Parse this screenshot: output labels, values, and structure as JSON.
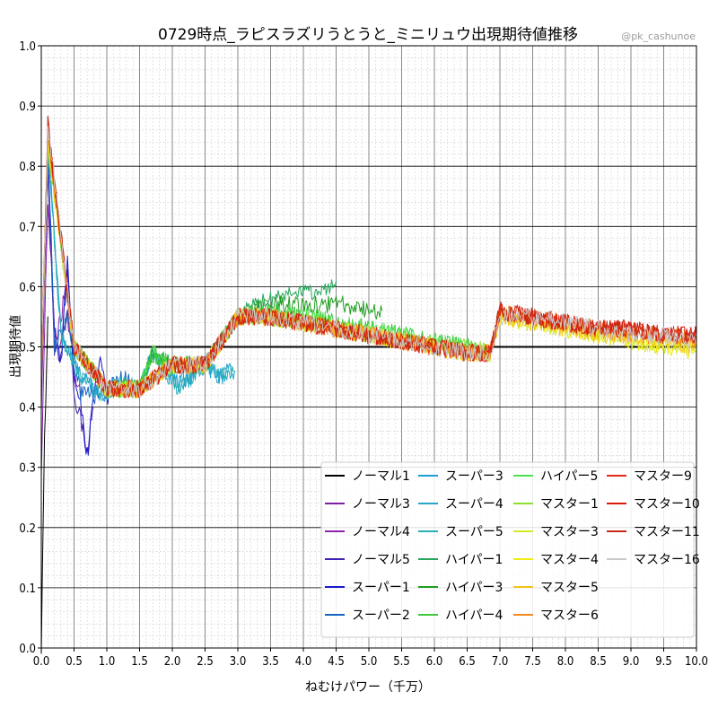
{
  "chart_data": {
    "type": "line",
    "title": "0729時点_ラピスラズリうとうと_ミニリュウ出現期待値推移",
    "credit": "@pk_cashunoe",
    "xlabel": "ねむけパワー（千万）",
    "ylabel": "出現期待値",
    "xlim": [
      0.0,
      10.0
    ],
    "ylim": [
      0.0,
      1.0
    ],
    "x_ticks": [
      "0.0",
      "0.5",
      "1.0",
      "1.5",
      "2.0",
      "2.5",
      "3.0",
      "3.5",
      "4.0",
      "4.5",
      "5.0",
      "5.5",
      "6.0",
      "6.5",
      "7.0",
      "7.5",
      "8.0",
      "8.5",
      "9.0",
      "9.5",
      "10.0"
    ],
    "y_ticks": [
      "0.0",
      "0.1",
      "0.2",
      "0.3",
      "0.4",
      "0.5",
      "0.6",
      "0.7",
      "0.8",
      "0.9",
      "1.0"
    ],
    "grid": true,
    "reference_line": 0.5,
    "legend_position": "bottom-right",
    "series": [
      {
        "name": "ノーマル1",
        "color": "#000000",
        "x": [
          0.0,
          0.05,
          0.1
        ],
        "y": [
          0.0,
          0.35,
          0.55
        ]
      },
      {
        "name": "ノーマル3",
        "color": "#7b1fa2",
        "x": [
          0.0,
          0.1,
          0.2,
          0.3,
          0.4,
          0.5
        ],
        "y": [
          0.3,
          0.75,
          0.52,
          0.5,
          0.55,
          0.48
        ]
      },
      {
        "name": "ノーマル4",
        "color": "#8e24aa",
        "x": [
          0.0,
          0.1,
          0.2,
          0.3,
          0.4,
          0.5,
          0.6
        ],
        "y": [
          0.4,
          0.8,
          0.5,
          0.55,
          0.62,
          0.45,
          0.42
        ]
      },
      {
        "name": "ノーマル5",
        "color": "#3f1fb4",
        "x": [
          0.0,
          0.1,
          0.2,
          0.3,
          0.4,
          0.5,
          0.6,
          0.7,
          0.8
        ],
        "y": [
          0.45,
          0.82,
          0.5,
          0.48,
          0.63,
          0.42,
          0.38,
          0.33,
          0.4
        ]
      },
      {
        "name": "スーパー1",
        "color": "#1a1acd",
        "x": [
          0.0,
          0.1,
          0.2,
          0.3,
          0.4,
          0.5,
          0.6,
          0.7,
          0.8,
          0.9,
          1.0,
          1.1
        ],
        "y": [
          0.45,
          0.83,
          0.52,
          0.47,
          0.64,
          0.45,
          0.4,
          0.32,
          0.41,
          0.48,
          0.41,
          0.45
        ]
      },
      {
        "name": "スーパー2",
        "color": "#1565c0",
        "x": [
          0.0,
          0.1,
          0.2,
          0.4,
          0.6,
          0.8,
          1.0,
          1.2,
          1.4
        ],
        "y": [
          0.45,
          0.84,
          0.5,
          0.55,
          0.42,
          0.42,
          0.43,
          0.45,
          0.44
        ]
      },
      {
        "name": "スーパー3",
        "color": "#1e9ed6",
        "x": [
          0.0,
          0.1,
          0.3,
          0.6,
          0.9,
          1.2,
          1.5,
          1.7,
          1.9,
          2.1,
          2.3,
          2.5,
          2.7,
          2.9
        ],
        "y": [
          0.45,
          0.84,
          0.52,
          0.45,
          0.42,
          0.44,
          0.43,
          0.49,
          0.46,
          0.44,
          0.45,
          0.47,
          0.45,
          0.46
        ]
      },
      {
        "name": "スーパー4",
        "color": "#26a6c8",
        "x": [
          0.0,
          0.1,
          0.3,
          0.6,
          0.9,
          1.2,
          1.5,
          1.7,
          1.9,
          2.1,
          2.3,
          2.5,
          2.7,
          2.95
        ],
        "y": [
          0.45,
          0.84,
          0.52,
          0.45,
          0.42,
          0.44,
          0.43,
          0.49,
          0.46,
          0.43,
          0.45,
          0.47,
          0.45,
          0.46
        ]
      },
      {
        "name": "スーパー5",
        "color": "#2ab0b8",
        "x": [
          0.0,
          0.1,
          0.3,
          0.6,
          0.9,
          1.2,
          1.5,
          1.7,
          1.9,
          2.1,
          2.3,
          2.5,
          2.7,
          2.95
        ],
        "y": [
          0.45,
          0.84,
          0.52,
          0.45,
          0.42,
          0.44,
          0.43,
          0.49,
          0.46,
          0.43,
          0.45,
          0.47,
          0.45,
          0.46
        ]
      },
      {
        "name": "ハイパー1",
        "color": "#26a65b",
        "x": [
          0.0,
          0.1,
          0.5,
          1.0,
          1.5,
          1.7,
          2.0,
          2.5,
          3.0,
          3.3,
          3.6,
          3.9,
          4.2,
          4.5
        ],
        "y": [
          0.45,
          0.84,
          0.5,
          0.43,
          0.43,
          0.49,
          0.47,
          0.47,
          0.55,
          0.57,
          0.58,
          0.59,
          0.59,
          0.61
        ]
      },
      {
        "name": "ハイパー3",
        "color": "#1f9e1f",
        "x": [
          0.0,
          0.1,
          0.5,
          1.0,
          1.5,
          1.7,
          2.0,
          2.5,
          3.0,
          3.4,
          3.8,
          4.2,
          4.6,
          5.0,
          5.2
        ],
        "y": [
          0.45,
          0.84,
          0.5,
          0.43,
          0.43,
          0.49,
          0.47,
          0.47,
          0.55,
          0.57,
          0.57,
          0.57,
          0.57,
          0.56,
          0.56
        ]
      },
      {
        "name": "ハイパー4",
        "color": "#3ec83e",
        "x": [
          0.0,
          0.1,
          0.5,
          1.0,
          1.5,
          1.7,
          2.0,
          2.5,
          3.0,
          3.5,
          4.0,
          4.5,
          5.0,
          5.5,
          6.0,
          6.5,
          6.85
        ],
        "y": [
          0.45,
          0.84,
          0.5,
          0.43,
          0.43,
          0.49,
          0.47,
          0.47,
          0.55,
          0.56,
          0.55,
          0.54,
          0.53,
          0.52,
          0.51,
          0.5,
          0.49
        ]
      },
      {
        "name": "ハイパー5",
        "color": "#4ee04e",
        "x": [
          0.0,
          0.1,
          0.5,
          1.0,
          1.5,
          1.7,
          2.0,
          2.5,
          3.0,
          3.5,
          4.0,
          4.5,
          5.0,
          5.5,
          6.0,
          6.5,
          6.85
        ],
        "y": [
          0.45,
          0.84,
          0.5,
          0.43,
          0.43,
          0.49,
          0.47,
          0.47,
          0.55,
          0.56,
          0.55,
          0.54,
          0.53,
          0.52,
          0.51,
          0.5,
          0.49
        ]
      },
      {
        "name": "マスター1",
        "color": "#8fe02a",
        "x": [
          0.0,
          0.1,
          0.5,
          1.0,
          1.5,
          2.0,
          2.5,
          3.0,
          3.5,
          4.0,
          4.5,
          5.0,
          5.5,
          6.0,
          6.5,
          6.85
        ],
        "y": [
          0.45,
          0.84,
          0.5,
          0.43,
          0.43,
          0.47,
          0.47,
          0.55,
          0.55,
          0.54,
          0.53,
          0.52,
          0.51,
          0.5,
          0.5,
          0.49
        ]
      },
      {
        "name": "マスター3",
        "color": "#d4e82a",
        "x": [
          0.0,
          0.1,
          0.5,
          1.0,
          1.5,
          2.0,
          2.5,
          3.0,
          3.5,
          4.0,
          4.5,
          5.0,
          5.5,
          6.0,
          6.5,
          6.85,
          7.0,
          7.5,
          8.0,
          8.5,
          9.0,
          9.5,
          10.0
        ],
        "y": [
          0.45,
          0.84,
          0.5,
          0.43,
          0.43,
          0.47,
          0.47,
          0.55,
          0.55,
          0.54,
          0.53,
          0.52,
          0.51,
          0.5,
          0.49,
          0.49,
          0.55,
          0.54,
          0.53,
          0.52,
          0.51,
          0.5,
          0.5
        ]
      },
      {
        "name": "マスター4",
        "color": "#f0ec10",
        "x": [
          0.0,
          0.1,
          0.5,
          1.0,
          1.5,
          2.0,
          2.5,
          3.0,
          3.5,
          4.0,
          4.5,
          5.0,
          5.5,
          6.0,
          6.5,
          6.85,
          7.0,
          7.5,
          8.0,
          8.5,
          9.0,
          9.5,
          10.0
        ],
        "y": [
          0.45,
          0.84,
          0.5,
          0.43,
          0.43,
          0.47,
          0.47,
          0.55,
          0.55,
          0.54,
          0.53,
          0.52,
          0.51,
          0.5,
          0.49,
          0.49,
          0.55,
          0.54,
          0.53,
          0.52,
          0.51,
          0.5,
          0.49
        ]
      },
      {
        "name": "マスター5",
        "color": "#f3c316",
        "x": [
          0.0,
          0.1,
          0.5,
          1.0,
          1.5,
          2.0,
          2.5,
          3.0,
          3.5,
          4.0,
          4.5,
          5.0,
          5.5,
          6.0,
          6.5,
          6.85,
          7.0,
          7.5,
          8.0,
          8.5,
          9.0,
          9.5,
          10.0
        ],
        "y": [
          0.45,
          0.85,
          0.5,
          0.43,
          0.43,
          0.47,
          0.47,
          0.55,
          0.55,
          0.54,
          0.53,
          0.52,
          0.51,
          0.5,
          0.49,
          0.49,
          0.55,
          0.54,
          0.53,
          0.52,
          0.52,
          0.51,
          0.5
        ]
      },
      {
        "name": "マスター6",
        "color": "#f38b1e",
        "x": [
          0.0,
          0.1,
          0.5,
          1.0,
          1.5,
          2.0,
          2.5,
          3.0,
          3.5,
          4.0,
          4.5,
          5.0,
          5.5,
          6.0,
          6.5,
          6.85,
          7.0,
          7.5,
          8.0,
          8.5,
          9.0,
          9.5,
          10.0
        ],
        "y": [
          0.45,
          0.86,
          0.5,
          0.43,
          0.43,
          0.47,
          0.47,
          0.55,
          0.55,
          0.54,
          0.53,
          0.52,
          0.51,
          0.5,
          0.49,
          0.49,
          0.56,
          0.55,
          0.54,
          0.53,
          0.52,
          0.52,
          0.51
        ]
      },
      {
        "name": "マスター9",
        "color": "#e52a1a",
        "x": [
          0.0,
          0.1,
          0.5,
          1.0,
          1.5,
          2.0,
          2.5,
          3.0,
          3.5,
          4.0,
          4.5,
          5.0,
          5.5,
          6.0,
          6.5,
          6.85,
          7.0,
          7.5,
          8.0,
          8.5,
          9.0,
          9.5,
          10.0
        ],
        "y": [
          0.45,
          0.86,
          0.5,
          0.43,
          0.43,
          0.47,
          0.47,
          0.55,
          0.55,
          0.54,
          0.53,
          0.52,
          0.51,
          0.5,
          0.49,
          0.49,
          0.56,
          0.55,
          0.54,
          0.53,
          0.53,
          0.52,
          0.52
        ]
      },
      {
        "name": "マスター10",
        "color": "#d81c0c",
        "x": [
          0.0,
          0.1,
          0.5,
          1.0,
          1.5,
          2.0,
          2.5,
          3.0,
          3.5,
          4.0,
          4.5,
          5.0,
          5.5,
          6.0,
          6.5,
          6.85,
          7.0,
          7.5,
          8.0,
          8.5,
          9.0,
          9.5,
          10.0
        ],
        "y": [
          0.45,
          0.87,
          0.5,
          0.43,
          0.43,
          0.47,
          0.47,
          0.55,
          0.55,
          0.54,
          0.53,
          0.52,
          0.51,
          0.5,
          0.49,
          0.49,
          0.56,
          0.55,
          0.54,
          0.53,
          0.53,
          0.52,
          0.52
        ]
      },
      {
        "name": "マスター11",
        "color": "#c62a14",
        "x": [
          0.0,
          0.1,
          0.5,
          1.0,
          1.5,
          2.0,
          2.5,
          3.0,
          3.5,
          4.0,
          4.5,
          5.0,
          5.5,
          6.0,
          6.5,
          6.85,
          7.0,
          7.5,
          8.0,
          8.5,
          9.0,
          9.5,
          10.0
        ],
        "y": [
          0.45,
          0.87,
          0.5,
          0.43,
          0.43,
          0.47,
          0.47,
          0.55,
          0.55,
          0.54,
          0.53,
          0.52,
          0.51,
          0.5,
          0.49,
          0.49,
          0.56,
          0.55,
          0.54,
          0.53,
          0.53,
          0.52,
          0.52
        ]
      },
      {
        "name": "マスター16",
        "color": "#c8c8c8",
        "x": [
          0.0,
          0.1,
          0.5,
          1.0,
          1.5,
          2.0,
          2.5,
          3.0,
          3.5,
          4.0,
          4.5,
          5.0,
          5.5,
          6.0,
          6.5,
          6.85,
          7.0,
          7.5,
          8.0,
          8.5,
          9.0,
          9.5,
          10.0
        ],
        "y": [
          0.45,
          0.87,
          0.5,
          0.43,
          0.43,
          0.47,
          0.47,
          0.55,
          0.55,
          0.54,
          0.53,
          0.52,
          0.51,
          0.5,
          0.49,
          0.49,
          0.55,
          0.55,
          0.54,
          0.53,
          0.52,
          0.52,
          0.51
        ]
      }
    ]
  }
}
